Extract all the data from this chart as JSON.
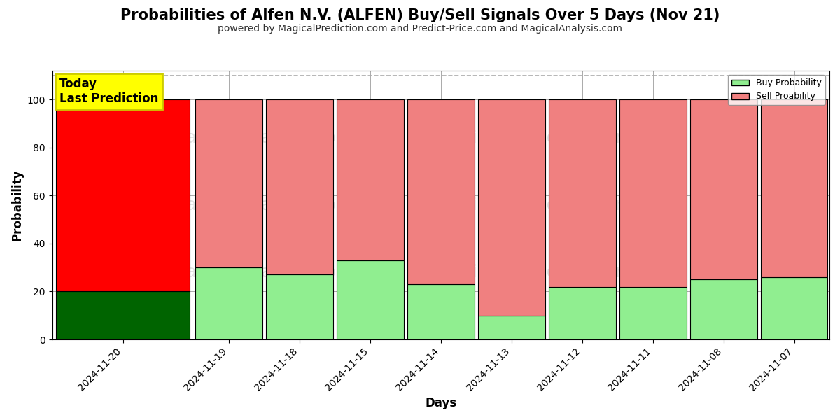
{
  "title": "Probabilities of Alfen N.V. (ALFEN) Buy/Sell Signals Over 5 Days (Nov 21)",
  "subtitle": "powered by MagicalPrediction.com and Predict-Price.com and MagicalAnalysis.com",
  "xlabel": "Days",
  "ylabel": "Probability",
  "ylim": [
    0,
    112
  ],
  "yticks": [
    0,
    20,
    40,
    60,
    80,
    100
  ],
  "dashed_line_y": 110,
  "categories": [
    "2024-11-20",
    "2024-11-19",
    "2024-11-18",
    "2024-11-15",
    "2024-11-14",
    "2024-11-13",
    "2024-11-12",
    "2024-11-11",
    "2024-11-08",
    "2024-11-07"
  ],
  "buy_values": [
    20,
    30,
    27,
    33,
    23,
    10,
    22,
    22,
    25,
    26
  ],
  "sell_values": [
    80,
    70,
    73,
    67,
    77,
    90,
    78,
    78,
    75,
    74
  ],
  "today_index": 0,
  "today_buy_color": "#006400",
  "today_sell_color": "#ff0000",
  "other_buy_color": "#90ee90",
  "other_sell_color": "#f08080",
  "today_label_text": "Today\nLast Prediction",
  "today_label_bg": "#ffff00",
  "today_label_fontsize": 12,
  "bar_edge_color": "#000000",
  "bar_linewidth": 0.8,
  "bar_width": 0.95,
  "today_bar_width": 1.9,
  "legend_buy_label": "Buy Probability",
  "legend_sell_label": "Sell Proability",
  "grid_color": "#aaaaaa",
  "grid_linewidth": 0.7,
  "background_color": "#ffffff",
  "title_fontsize": 15,
  "subtitle_fontsize": 10,
  "axis_label_fontsize": 12,
  "tick_fontsize": 10,
  "watermark_texts": [
    "MagicalAnalysis.com",
    "MagicalPrediction.com"
  ],
  "watermark_color": "#d0d0d0",
  "watermark_alpha": 0.6,
  "watermark_fontsize": 18
}
